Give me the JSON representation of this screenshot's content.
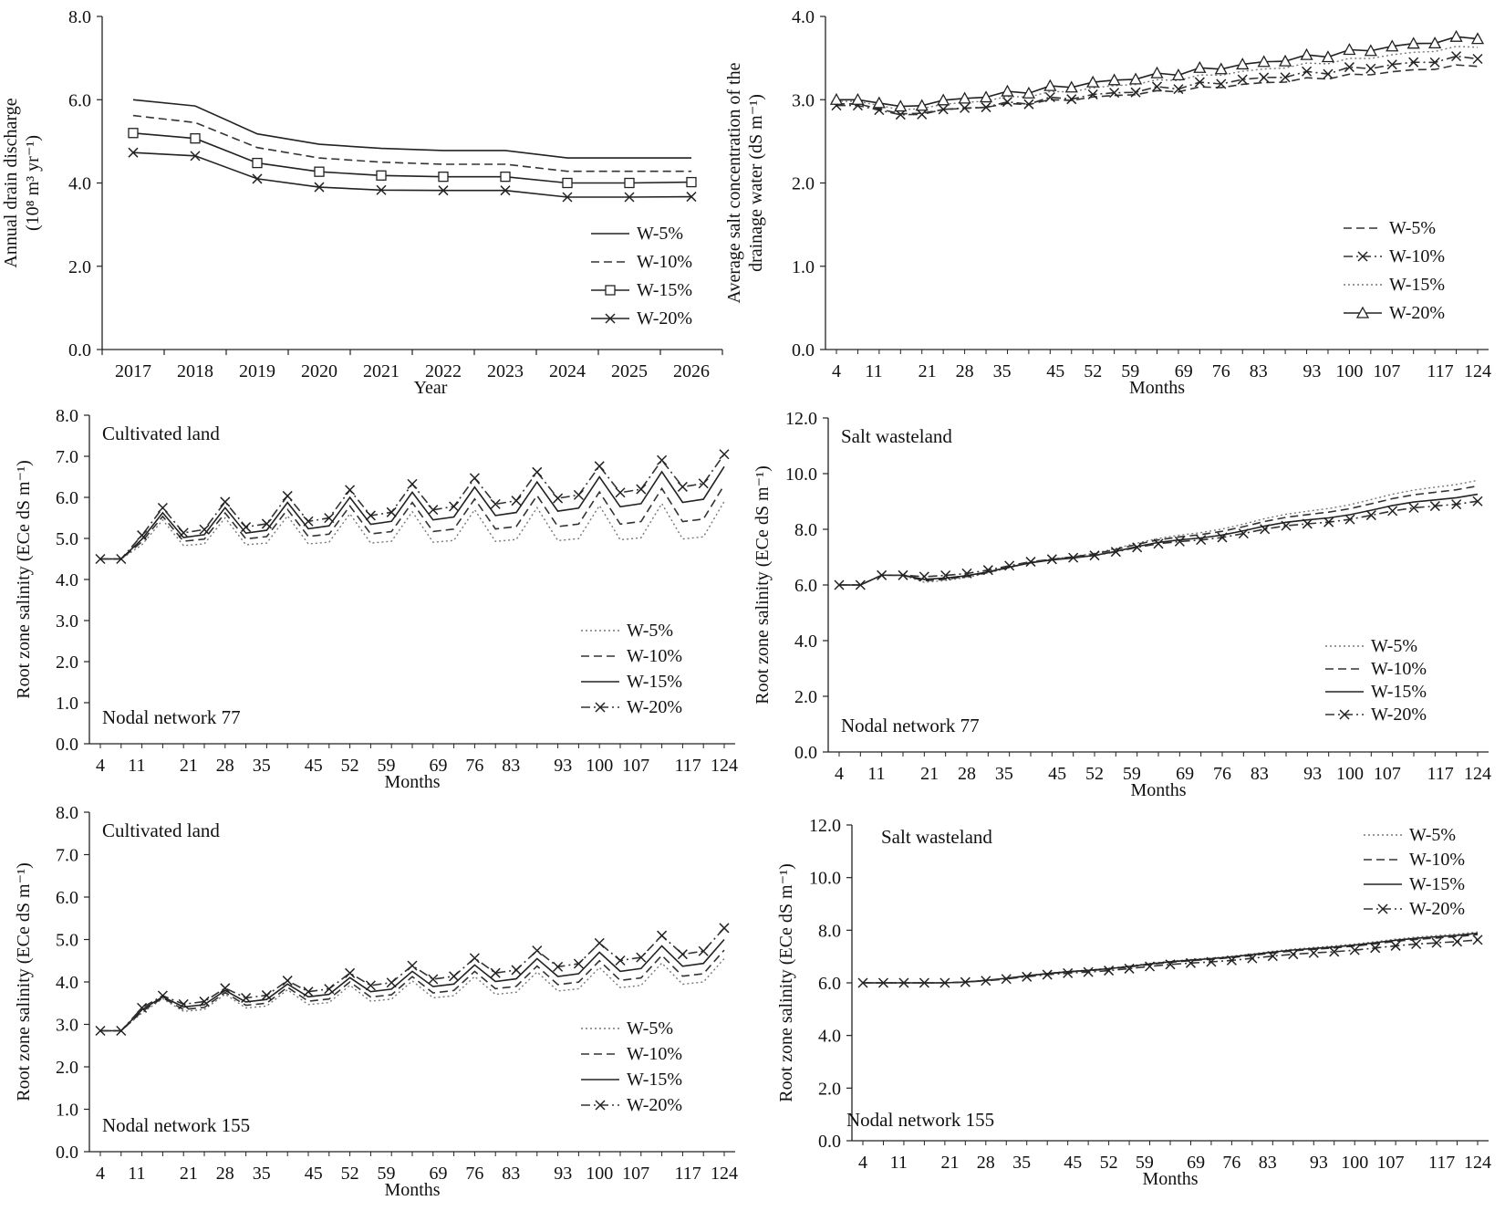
{
  "figure_description": "Six-panel figure of drain discharge, drainage water salt concentration and root zone salinity under W-5%, W-10%, W-15% and W-20% scenarios",
  "month_ticks": [
    "4",
    "11",
    "21",
    "28",
    "35",
    "45",
    "52",
    "59",
    "69",
    "76",
    "83",
    "93",
    "100",
    "107",
    "117",
    "124"
  ],
  "chart_data": [
    {
      "id": "p1",
      "type": "line",
      "title": "",
      "xlabel": "Year",
      "ylabel_lines": [
        "Annual drain discharge",
        "(10⁸ m³ yr⁻¹)"
      ],
      "ylim": [
        0,
        8
      ],
      "yticks": [
        "0.0",
        "2.0",
        "4.0",
        "6.0",
        "8.0"
      ],
      "x": [
        "2017",
        "2018",
        "2019",
        "2020",
        "2021",
        "2022",
        "2023",
        "2024",
        "2025",
        "2026"
      ],
      "legend_position": "center-right",
      "series": [
        {
          "name": "W-5%",
          "style": "solid",
          "marker": "none",
          "values": [
            6.0,
            5.85,
            5.18,
            4.93,
            4.83,
            4.78,
            4.78,
            4.6,
            4.6,
            4.6
          ]
        },
        {
          "name": "W-10%",
          "style": "dashed",
          "marker": "none",
          "values": [
            5.62,
            5.45,
            4.85,
            4.6,
            4.5,
            4.45,
            4.45,
            4.28,
            4.28,
            4.28
          ]
        },
        {
          "name": "W-15%",
          "style": "solid",
          "marker": "square",
          "values": [
            5.2,
            5.07,
            4.48,
            4.27,
            4.18,
            4.15,
            4.15,
            4.0,
            4.0,
            4.02
          ]
        },
        {
          "name": "W-20%",
          "style": "solid",
          "marker": "x",
          "values": [
            4.73,
            4.65,
            4.1,
            3.9,
            3.83,
            3.82,
            3.82,
            3.66,
            3.66,
            3.67
          ]
        }
      ]
    },
    {
      "id": "p2",
      "type": "line",
      "title": "",
      "xlabel": "Months",
      "ylabel_lines": [
        "Average salt concentration of the",
        "drainage water (dS m⁻¹)"
      ],
      "ylim": [
        0,
        4
      ],
      "yticks": [
        "0.0",
        "1.0",
        "2.0",
        "3.0",
        "4.0"
      ],
      "month_range": [
        4,
        124
      ],
      "legend_position": "bottom-right",
      "series": [
        {
          "name": "W-5%",
          "style": "dashed",
          "marker": "none",
          "start": 2.95,
          "dip": 2.83,
          "end": 3.42,
          "amp": 0.02
        },
        {
          "name": "W-10%",
          "style": "dashdot",
          "marker": "x",
          "start": 2.93,
          "dip": 2.82,
          "end": 3.52,
          "amp": 0.03
        },
        {
          "name": "W-15%",
          "style": "dotted",
          "marker": "none",
          "start": 2.98,
          "dip": 2.88,
          "end": 3.65,
          "amp": 0.02
        },
        {
          "name": "W-20%",
          "style": "solid",
          "marker": "triangle",
          "start": 3.0,
          "dip": 2.92,
          "end": 3.76,
          "amp": 0.03
        }
      ]
    },
    {
      "id": "p3",
      "type": "line",
      "title": "Cultivated land",
      "annotation": "Nodal network 77",
      "xlabel": "Months",
      "ylabel_lines": [
        "Root zone salinity (ECe dS m⁻¹)"
      ],
      "ylim": [
        0,
        8
      ],
      "yticks": [
        "0.0",
        "1.0",
        "2.0",
        "3.0",
        "4.0",
        "5.0",
        "6.0",
        "7.0",
        "8.0"
      ],
      "month_range": [
        4,
        124
      ],
      "legend_position": "bottom-right",
      "pattern": "seasonal",
      "series": [
        {
          "name": "W-5%",
          "style": "dotted",
          "marker": "none",
          "start": 4.5,
          "base": 4.8,
          "baseEnd": 5.0,
          "peak": 5.4,
          "peakEnd": 5.9
        },
        {
          "name": "W-10%",
          "style": "dashed",
          "marker": "none",
          "start": 4.5,
          "base": 4.85,
          "baseEnd": 5.45,
          "peak": 5.45,
          "peakEnd": 6.3
        },
        {
          "name": "W-15%",
          "style": "solid",
          "marker": "none",
          "start": 4.5,
          "base": 4.88,
          "baseEnd": 5.95,
          "peak": 5.5,
          "peakEnd": 6.75
        },
        {
          "name": "W-20%",
          "style": "dashdot",
          "marker": "x",
          "start": 4.5,
          "base": 4.95,
          "baseEnd": 6.35,
          "peak": 5.6,
          "peakEnd": 7.05
        }
      ]
    },
    {
      "id": "p4",
      "type": "line",
      "title": "Salt wasteland",
      "annotation": "Nodal network 77",
      "xlabel": "Months",
      "ylabel_lines": [
        "Root zone salinity (ECe dS m⁻¹)"
      ],
      "ylim": [
        0,
        12
      ],
      "yticks": [
        "0.0",
        "2.0",
        "4.0",
        "6.0",
        "8.0",
        "10.0",
        "12.0"
      ],
      "month_range": [
        4,
        124
      ],
      "legend_position": "bottom-right",
      "pattern": "trend",
      "series": [
        {
          "name": "W-5%",
          "style": "dotted",
          "marker": "none",
          "start": 6.0,
          "bump": 6.35,
          "dip": 6.1,
          "end": 9.8,
          "amp": 0.05
        },
        {
          "name": "W-10%",
          "style": "dashed",
          "marker": "none",
          "start": 6.0,
          "bump": 6.35,
          "dip": 6.15,
          "end": 9.6,
          "amp": 0.05
        },
        {
          "name": "W-15%",
          "style": "solid",
          "marker": "none",
          "start": 6.0,
          "bump": 6.35,
          "dip": 6.2,
          "end": 9.3,
          "amp": 0.05
        },
        {
          "name": "W-20%",
          "style": "dashdot",
          "marker": "x",
          "start": 6.0,
          "bump": 6.35,
          "dip": 6.3,
          "end": 9.05,
          "amp": 0.05
        }
      ]
    },
    {
      "id": "p5",
      "type": "line",
      "title": "Cultivated land",
      "annotation": "Nodal network 155",
      "xlabel": "Months",
      "ylabel_lines": [
        "Root zone salinity (ECe dS m⁻¹)"
      ],
      "ylim": [
        0,
        8
      ],
      "yticks": [
        "0.0",
        "1.0",
        "2.0",
        "3.0",
        "4.0",
        "5.0",
        "6.0",
        "7.0",
        "8.0"
      ],
      "month_range": [
        4,
        124
      ],
      "legend_position": "bottom-right",
      "pattern": "seasonal",
      "series": [
        {
          "name": "W-5%",
          "style": "dotted",
          "marker": "none",
          "start": 2.85,
          "base": 3.2,
          "baseEnd": 4.0,
          "peak": 3.5,
          "peakEnd": 4.55
        },
        {
          "name": "W-10%",
          "style": "dashed",
          "marker": "none",
          "start": 2.85,
          "base": 3.22,
          "baseEnd": 4.2,
          "peak": 3.5,
          "peakEnd": 4.75
        },
        {
          "name": "W-15%",
          "style": "solid",
          "marker": "none",
          "start": 2.85,
          "base": 3.25,
          "baseEnd": 4.45,
          "peak": 3.5,
          "peakEnd": 5.0
        },
        {
          "name": "W-20%",
          "style": "dashdot",
          "marker": "x",
          "start": 2.85,
          "base": 3.28,
          "baseEnd": 4.75,
          "peak": 3.5,
          "peakEnd": 5.27
        }
      ]
    },
    {
      "id": "p6",
      "type": "line",
      "title": "Salt wasteland",
      "annotation": "Nodal network 155",
      "xlabel": "Months",
      "ylabel_lines": [
        "Root zone salinity (ECe dS m⁻¹)"
      ],
      "ylim": [
        0,
        12
      ],
      "yticks": [
        "0.0",
        "2.0",
        "4.0",
        "6.0",
        "8.0",
        "10.0",
        "12.0"
      ],
      "month_range": [
        4,
        124
      ],
      "legend_position": "top-right",
      "pattern": "trend",
      "series": [
        {
          "name": "W-5%",
          "style": "dotted",
          "marker": "none",
          "start": 6.0,
          "bump": 6.0,
          "dip": 6.0,
          "end": 7.95,
          "amp": 0.02
        },
        {
          "name": "W-10%",
          "style": "dashed",
          "marker": "none",
          "start": 6.0,
          "bump": 6.0,
          "dip": 6.0,
          "end": 7.85,
          "amp": 0.02
        },
        {
          "name": "W-15%",
          "style": "solid",
          "marker": "none",
          "start": 6.0,
          "bump": 6.0,
          "dip": 6.0,
          "end": 7.9,
          "amp": 0.02
        },
        {
          "name": "W-20%",
          "style": "dashdot",
          "marker": "x",
          "start": 6.0,
          "bump": 6.0,
          "dip": 6.0,
          "end": 7.65,
          "amp": 0.02
        }
      ]
    }
  ]
}
